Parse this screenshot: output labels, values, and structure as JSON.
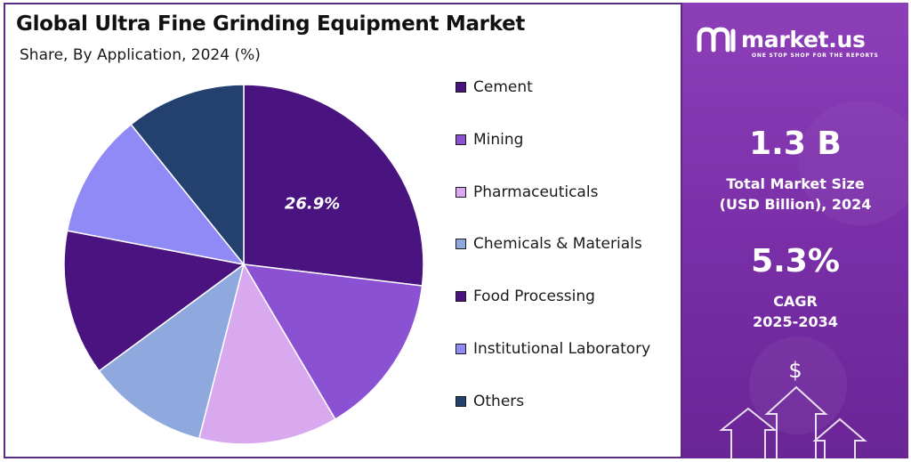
{
  "chart_data": {
    "type": "pie",
    "title": "Global Ultra Fine Grinding Equipment Market",
    "subtitle": "Share, By Application, 2024 (%)",
    "legend_position": "right",
    "categories": [
      "Cement",
      "Mining",
      "Pharmaceuticals",
      "Chemicals & Materials",
      "Food Processing",
      "Institutional Laboratory",
      "Others"
    ],
    "values": [
      26.9,
      14.6,
      12.5,
      10.9,
      13.1,
      11.2,
      10.8
    ],
    "data_labels": [
      "26.9%",
      "",
      "",
      "",
      "",
      "",
      ""
    ],
    "colors": [
      "#4a1480",
      "#8a52d2",
      "#d9a9ef",
      "#8fa9df",
      "#4a1380",
      "#8f8af5",
      "#24406f"
    ]
  },
  "sidebar": {
    "brand_name": "market.us",
    "tagline": "ONE STOP SHOP FOR THE REPORTS",
    "market_size_value": "1.3 B",
    "market_size_label_line1": "Total Market Size",
    "market_size_label_line2": "(USD Billion), 2024",
    "cagr_value": "5.3%",
    "cagr_label_line1": "CAGR",
    "cagr_label_line2": "2025-2034",
    "dollar_symbol": "$"
  }
}
